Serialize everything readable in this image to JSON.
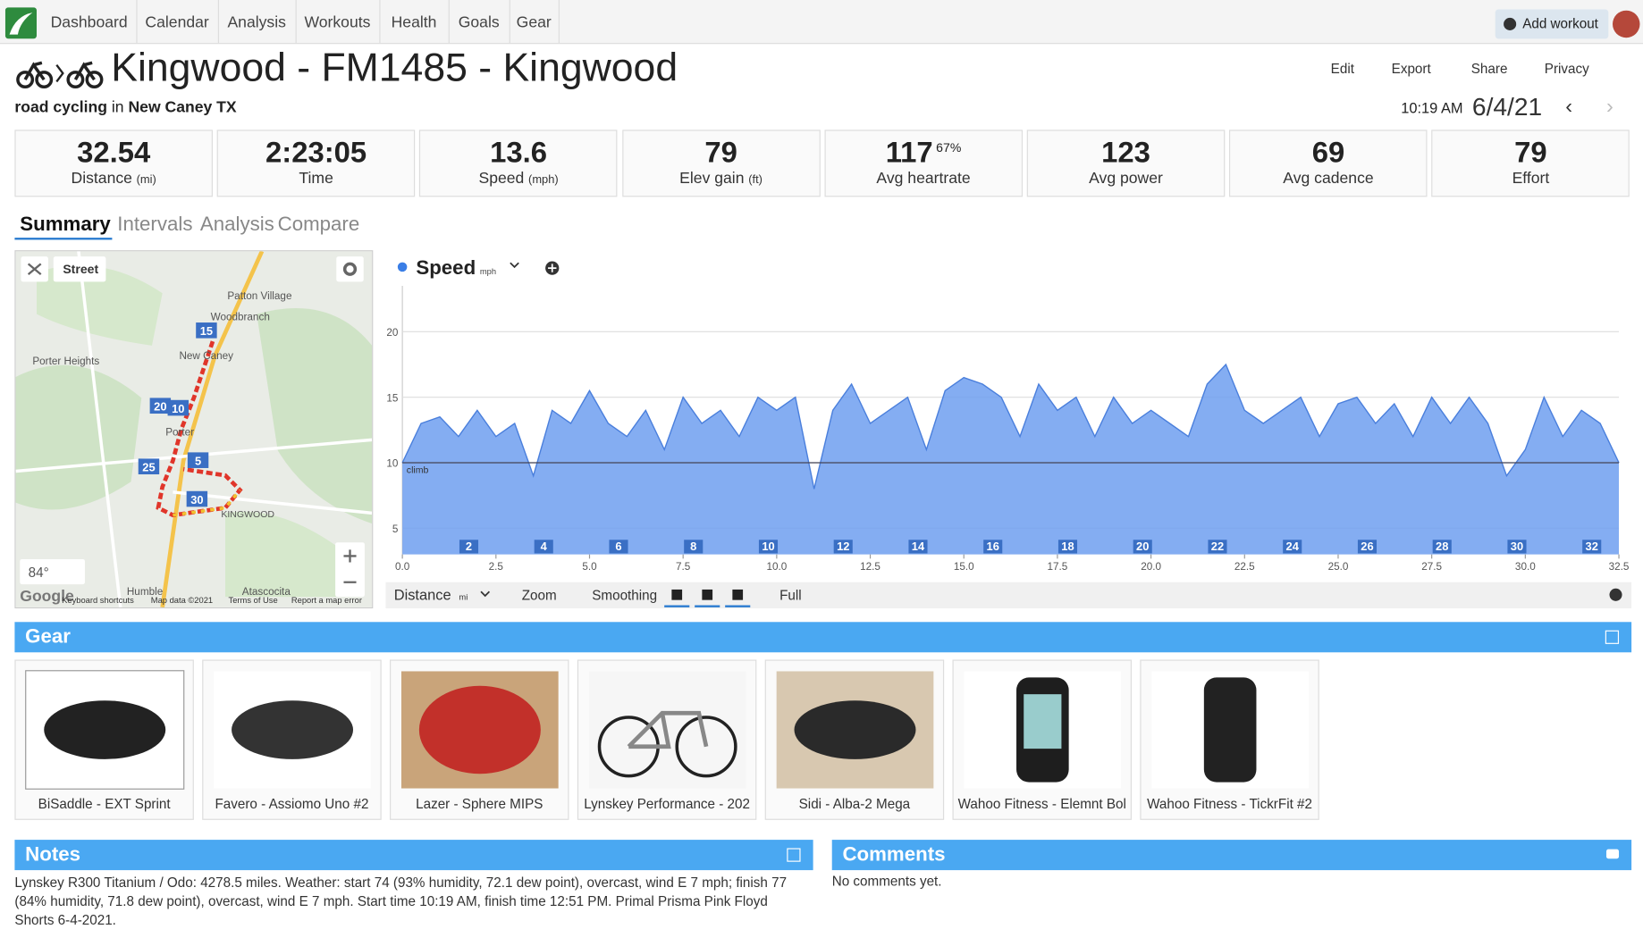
{
  "nav": {
    "items": [
      "Dashboard",
      "Calendar",
      "Analysis",
      "Workouts",
      "Health",
      "Goals",
      "Gear"
    ],
    "add_workout": "Add workout"
  },
  "header": {
    "title": "Kingwood - FM1485 - Kingwood",
    "sport": "road cycling",
    "in": "in",
    "location": "New Caney TX",
    "actions": [
      "Edit",
      "Export",
      "Share",
      "Privacy"
    ],
    "time": "10:19 AM",
    "date": "6/4/21"
  },
  "stats": [
    {
      "value": "32.54",
      "label": "Distance",
      "unit": "(mi)"
    },
    {
      "value": "2:23:05",
      "label": "Time"
    },
    {
      "value": "13.6",
      "label": "Speed",
      "unit": "(mph)"
    },
    {
      "value": "79",
      "label": "Elev gain",
      "unit": "(ft)"
    },
    {
      "value": "117",
      "extra": "67%",
      "label": "Avg heartrate"
    },
    {
      "value": "123",
      "label": "Avg power"
    },
    {
      "value": "69",
      "label": "Avg cadence"
    },
    {
      "value": "79",
      "label": "Effort"
    }
  ],
  "tabs": [
    "Summary",
    "Intervals",
    "Analysis",
    "Compare"
  ],
  "map": {
    "button": "Street",
    "temperature": "84°",
    "places": [
      "Patton Village",
      "Woodbranch",
      "Porter Heights",
      "New Caney",
      "Porter",
      "KINGWOOD",
      "Humble",
      "Atascocita"
    ],
    "markers": [
      "15",
      "20",
      "10",
      "25",
      "5",
      "30"
    ],
    "footer": [
      "Google",
      "Keyboard shortcuts",
      "Map data ©2021",
      "Terms of Use",
      "Report a map error"
    ]
  },
  "speed_chart": {
    "type": "area",
    "title": "Speed",
    "unit": "mph",
    "color": "#6f9ff0",
    "ylim": [
      3,
      23.5
    ],
    "yticks": [
      5,
      10,
      15,
      20
    ],
    "xlim": [
      0,
      32.5
    ],
    "xticks": [
      {
        "value": 0,
        "label": "0.0"
      },
      2.5,
      {
        "value": 5,
        "label": "5.0"
      },
      7.5,
      {
        "value": 10,
        "label": "10.0"
      },
      12.5,
      {
        "value": 15,
        "label": "15.0"
      },
      17.5,
      {
        "value": 20,
        "label": "20.0"
      },
      22.5,
      {
        "value": 25,
        "label": "25.0"
      },
      27.5,
      {
        "value": 30,
        "label": "30.0"
      },
      32.5
    ],
    "annotation": {
      "text": "climb",
      "value": 10
    },
    "laps": [
      2,
      4,
      6,
      8,
      10,
      12,
      14,
      16,
      18,
      20,
      22,
      24,
      26,
      28,
      30,
      32
    ],
    "x": [
      0,
      0.5,
      1,
      1.5,
      2,
      2.5,
      3,
      3.5,
      4,
      4.5,
      5,
      5.5,
      6,
      6.5,
      7,
      7.5,
      8,
      8.5,
      9,
      9.5,
      10,
      10.5,
      11,
      11.5,
      12,
      12.5,
      13,
      13.5,
      14,
      14.5,
      15,
      15.5,
      16,
      16.5,
      17,
      17.5,
      18,
      18.5,
      19,
      19.5,
      20,
      20.5,
      21,
      21.5,
      22,
      22.5,
      23,
      23.5,
      24,
      24.5,
      25,
      25.5,
      26,
      26.5,
      27,
      27.5,
      28,
      28.5,
      29,
      29.5,
      30,
      30.5,
      31,
      31.5,
      32,
      32.5
    ],
    "values": [
      10,
      13,
      13.5,
      12,
      14,
      12,
      13,
      9,
      14,
      13,
      15.5,
      13,
      12,
      14,
      11,
      15,
      13,
      14,
      12,
      15,
      14,
      15,
      8,
      14,
      16,
      13,
      14,
      15,
      11,
      15.5,
      16.5,
      16,
      15,
      12,
      16,
      14,
      15,
      12,
      15,
      13,
      14,
      13,
      12,
      16,
      17.5,
      14,
      13,
      14,
      15,
      12,
      14.5,
      15,
      13,
      14.5,
      12,
      15,
      13,
      15,
      13,
      9,
      11,
      15,
      12,
      14,
      13,
      10
    ]
  },
  "chart_controls": {
    "axis": "Distance",
    "axis_unit": "mi",
    "zoom": "Zoom",
    "smoothing": "Smoothing",
    "full": "Full"
  },
  "gear": {
    "title": "Gear",
    "items": [
      "BiSaddle - EXT Sprint",
      "Favero - Assiomo Uno #2",
      "Lazer - Sphere MIPS",
      "Lynskey Performance - 202",
      "Sidi - Alba-2 Mega",
      "Wahoo Fitness - Elemnt Bol",
      "Wahoo Fitness - TickrFit #2"
    ]
  },
  "notes": {
    "title": "Notes",
    "text": "Lynskey R300 Titanium / Odo: 4278.5 miles. Weather: start 74 (93% humidity, 72.1 dew point), overcast, wind E 7 mph; finish 77 (84% humidity, 71.8 dew point), overcast, wind E 7 mph. Start time 10:19 AM, finish time 12:51 PM. Primal Prisma Pink Floyd Shorts 6-4-2021."
  },
  "comments": {
    "title": "Comments",
    "text": "No comments yet."
  }
}
